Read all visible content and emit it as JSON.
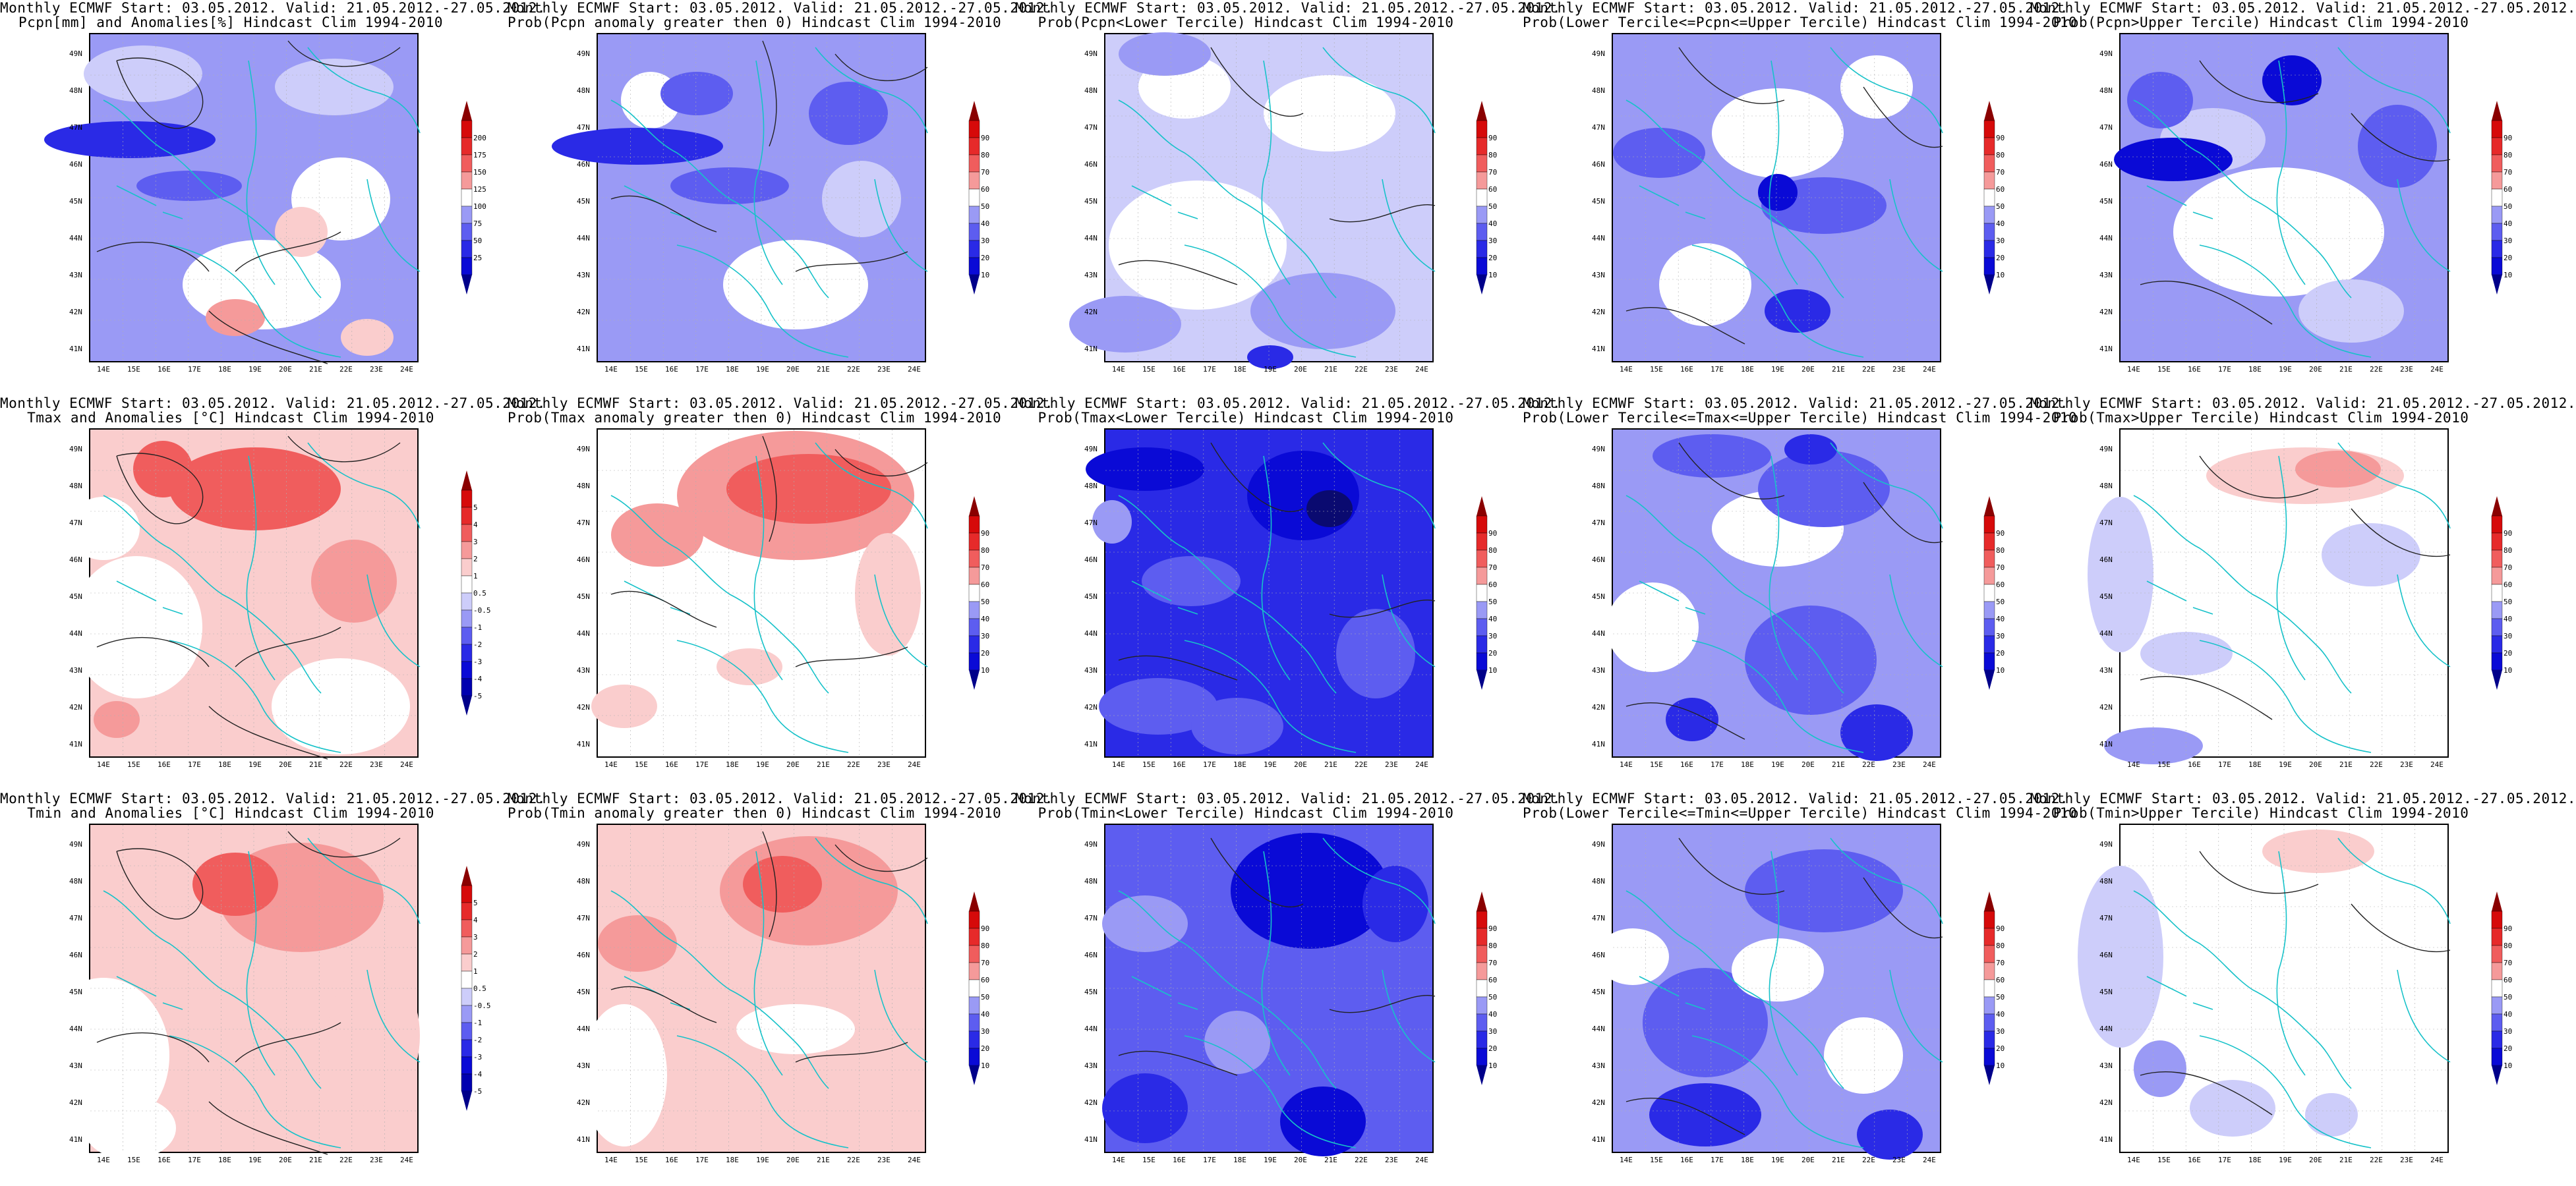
{
  "header_common": "Monthly ECMWF Start: 03.05.2012. Valid: 21.05.2012.-27.05.2012.",
  "lat_labels": [
    "49N",
    "48N",
    "47N",
    "46N",
    "45N",
    "44N",
    "43N",
    "42N",
    "41N"
  ],
  "lon_labels": [
    "14E",
    "15E",
    "16E",
    "17E",
    "18E",
    "19E",
    "20E",
    "21E",
    "22E",
    "23E",
    "24E"
  ],
  "colors": {
    "coast": "#17c2c9",
    "contour": "#222222",
    "grid": "#b0b0b0",
    "blue": [
      "#0a0ad6",
      "#2a2ae6",
      "#5d5df0",
      "#9a9af5",
      "#cdcdfa"
    ],
    "red": [
      "#d60a0a",
      "#e62a2a",
      "#f05d5d",
      "#f59a9a",
      "#facdcd"
    ]
  },
  "colorbars": {
    "pcpn": [
      "200",
      "175",
      "150",
      "125",
      "100",
      "75",
      "50",
      "25"
    ],
    "temp": [
      "5",
      "4",
      "3",
      "2",
      "1",
      "0.5",
      "-0.5",
      "-1",
      "-2",
      "-3",
      "-4",
      "-5"
    ],
    "prob": [
      "90",
      "80",
      "70",
      "60",
      "50",
      "40",
      "30",
      "20",
      "10"
    ]
  },
  "panels": [
    {
      "line1": "Monthly ECMWF Start: 03.05.2012. Valid: 21.05.2012.-27.05.2012.",
      "line2": "Pcpn[mm] and Anomalies[%] Hindcast Clim 1994-2010",
      "scheme": "pcpn"
    },
    {
      "line1": "Monthly ECMWF Start: 03.05.2012. Valid: 21.05.2012.-27.05.2012.",
      "line2": "Prob(Pcpn anomaly greater then 0) Hindcast Clim 1994-2010",
      "scheme": "prob"
    },
    {
      "line1": "Monthly ECMWF Start: 03.05.2012. Valid: 21.05.2012.-27.05.2012.",
      "line2": "Prob(Pcpn<Lower Tercile) Hindcast Clim 1994-2010",
      "scheme": "prob"
    },
    {
      "line1": "Monthly ECMWF Start: 03.05.2012. Valid: 21.05.2012.-27.05.2012.",
      "line2": "Prob(Lower Tercile<=Pcpn<=Upper Tercile) Hindcast Clim 1994-2010",
      "scheme": "prob"
    },
    {
      "line1": "Monthly ECMWF Start: 03.05.2012. Valid: 21.05.2012.-27.05.2012.",
      "line2": "Prob(Pcpn>Upper Tercile) Hindcast Clim 1994-2010",
      "scheme": "prob"
    },
    {
      "line1": "Monthly ECMWF Start: 03.05.2012. Valid: 21.05.2012.-27.05.2012.",
      "line2": "Tmax and Anomalies [°C] Hindcast Clim 1994-2010",
      "scheme": "temp"
    },
    {
      "line1": "Monthly ECMWF Start: 03.05.2012. Valid: 21.05.2012.-27.05.2012.",
      "line2": "Prob(Tmax anomaly greater then 0) Hindcast Clim 1994-2010",
      "scheme": "prob"
    },
    {
      "line1": "Monthly ECMWF Start: 03.05.2012. Valid: 21.05.2012.-27.05.2012.",
      "line2": "Prob(Tmax<Lower Tercile) Hindcast Clim 1994-2010",
      "scheme": "prob"
    },
    {
      "line1": "Monthly ECMWF Start: 03.05.2012. Valid: 21.05.2012.-27.05.2012.",
      "line2": "Prob(Lower Tercile<=Tmax<=Upper Tercile) Hindcast Clim 1994-2010",
      "scheme": "prob"
    },
    {
      "line1": "Monthly ECMWF Start: 03.05.2012. Valid: 21.05.2012.-27.05.2012.",
      "line2": "Prob(Tmax>Upper Tercile) Hindcast Clim 1994-2010",
      "scheme": "prob"
    },
    {
      "line1": "Monthly ECMWF Start: 03.05.2012. Valid: 21.05.2012.-27.05.2012.",
      "line2": "Tmin and Anomalies [°C] Hindcast Clim 1994-2010",
      "scheme": "temp"
    },
    {
      "line1": "Monthly ECMWF Start: 03.05.2012. Valid: 21.05.2012.-27.05.2012.",
      "line2": "Prob(Tmin anomaly greater then 0) Hindcast Clim 1994-2010",
      "scheme": "prob"
    },
    {
      "line1": "Monthly ECMWF Start: 03.05.2012. Valid: 21.05.2012.-27.05.2012.",
      "line2": "Prob(Tmin<Lower Tercile) Hindcast Clim 1994-2010",
      "scheme": "prob"
    },
    {
      "line1": "Monthly ECMWF Start: 03.05.2012. Valid: 21.05.2012.-27.05.2012.",
      "line2": "Prob(Lower Tercile<=Tmin<=Upper Tercile) Hindcast Clim 1994-2010",
      "scheme": "prob"
    },
    {
      "line1": "Monthly ECMWF Start: 03.05.2012. Valid: 21.05.2012.-27.05.2012.",
      "line2": "Prob(Tmin>Upper Tercile) Hindcast Clim 1994-2010",
      "scheme": "prob"
    }
  ]
}
